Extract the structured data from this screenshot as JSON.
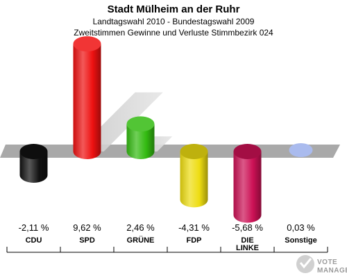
{
  "header": {
    "title": "Stadt Mülheim an der Ruhr",
    "subtitle1": "Landtagswahl 2010 - Bundestagswahl 2009",
    "subtitle2": "Zweitstimmen Gewinne und Verluste Stimmbezirk 024"
  },
  "chart_data": {
    "type": "bar",
    "title": "Stadt Mülheim an der Ruhr",
    "subtitle": "Landtagswahl 2010 - Bundestagswahl 2009 / Zweitstimmen Gewinne und Verluste Stimmbezirk 024",
    "categories": [
      "CDU",
      "SPD",
      "GRÜNE",
      "FDP",
      "DIE LINKE",
      "Sonstige"
    ],
    "category_lines": [
      [
        "CDU"
      ],
      [
        "SPD"
      ],
      [
        "GRÜNE"
      ],
      [
        "FDP"
      ],
      [
        "DIE",
        "LINKE"
      ],
      [
        "Sonstige"
      ]
    ],
    "values": [
      -2.11,
      9.62,
      2.46,
      -4.31,
      -5.68,
      0.03
    ],
    "value_labels": [
      "-2,11 %",
      "9,62 %",
      "2,46 %",
      "-4,31 %",
      "-5,68 %",
      "0,03 %"
    ],
    "colors": [
      "#111111",
      "#ee1111",
      "#33bb11",
      "#eedd11",
      "#cc1155",
      "#aabbee"
    ],
    "unit": "%",
    "xlabel": "",
    "ylabel": "",
    "grid": false
  },
  "logo": {
    "line1": "VOTE",
    "line2": "MANAGER"
  }
}
